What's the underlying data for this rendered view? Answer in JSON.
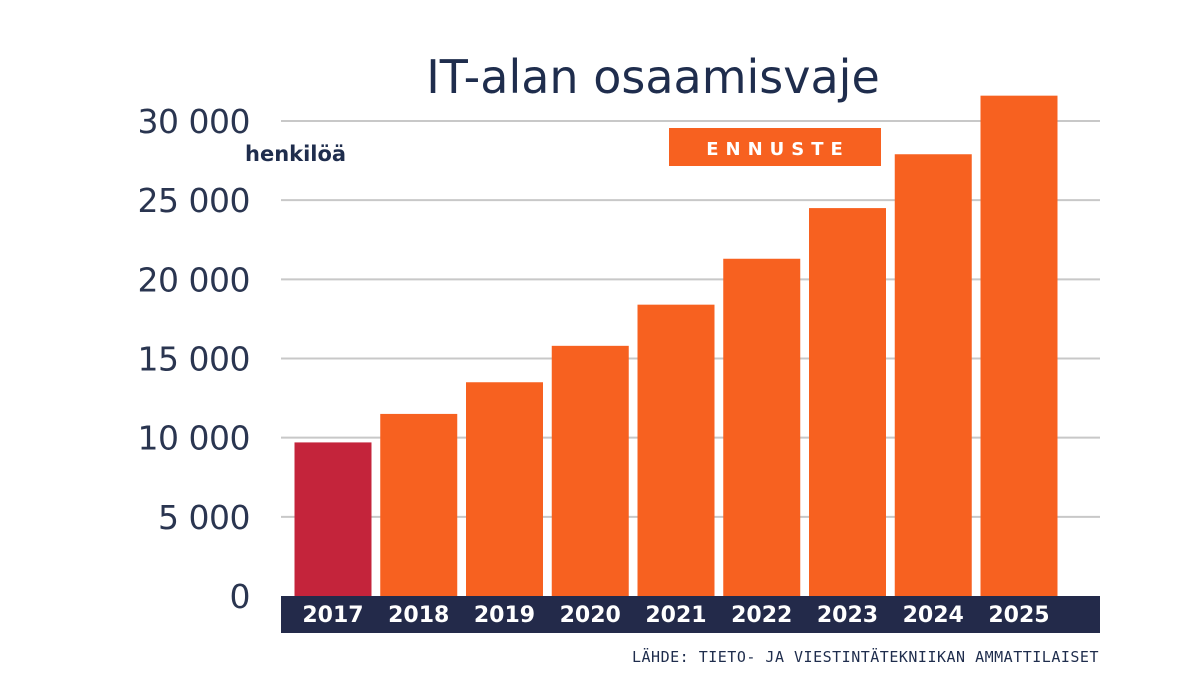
{
  "chart_data": {
    "type": "bar",
    "title": "IT-alan osaamisvaje",
    "unit_label": "henkilöä",
    "forecast_label": "ENNUSTE",
    "source": "LÄHDE: TIETO- JA VIESTINTÄTEKNIIKAN AMMATTILAISET",
    "categories": [
      "2017",
      "2018",
      "2019",
      "2020",
      "2021",
      "2022",
      "2023",
      "2024",
      "2025"
    ],
    "values": [
      9700,
      11500,
      13500,
      15800,
      18400,
      21300,
      24500,
      27900,
      31600
    ],
    "forecast_from_index": 1,
    "ylim": [
      0,
      30000
    ],
    "yticks": [
      0,
      5000,
      10000,
      15000,
      20000,
      25000,
      30000
    ],
    "ytick_labels": [
      "0",
      "5 000",
      "10 000",
      "15 000",
      "20 000",
      "25 000",
      "30 000"
    ],
    "grid": true,
    "colors": {
      "actual": "#c4243b",
      "forecast": "#f76120",
      "axis_band": "#232a4a",
      "gridline": "#c8c8c8",
      "title": "#1f2d4d"
    }
  }
}
